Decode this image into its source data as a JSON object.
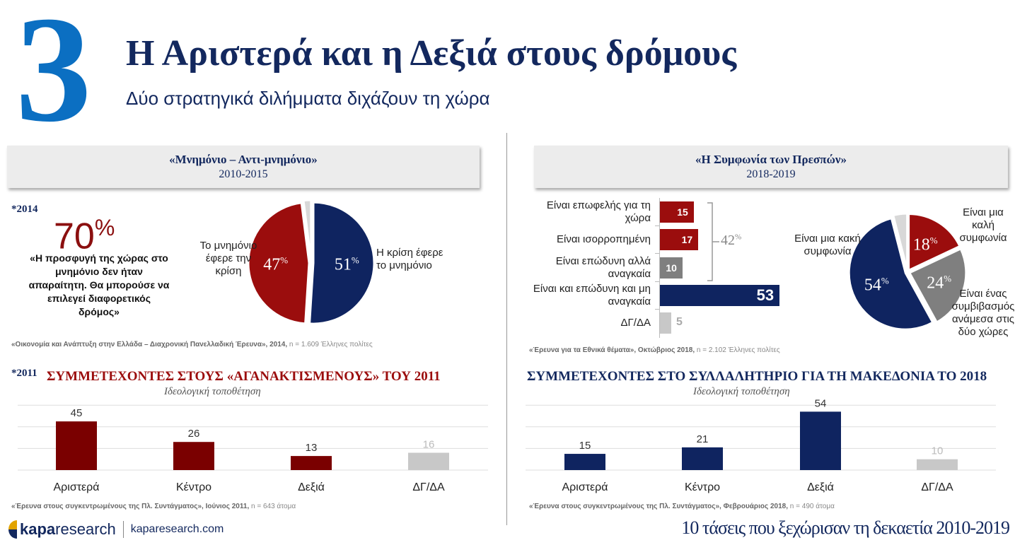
{
  "header": {
    "number": "3",
    "title": "Η Αριστερά και η Δεξιά στους δρόμους",
    "subtitle": "Δύο στρατηγικά διλήμματα διχάζουν τη χώρα"
  },
  "left_panel": {
    "heading": "«Μνημόνιο – Αντι-μνημόνιο»",
    "years": "2010-2015",
    "note_year": "*2014",
    "big_value": "70",
    "big_unit": "%",
    "quote": "«Η προσφυγή της χώρας στο μνημόνιο δεν ήταν απαραίτητη. Θα μπορούσε να επιλεγεί διαφορετικός δρόμος»",
    "source_text": "«Οικονομία και Ανάπτυξη στην Ελλάδα – Διαχρονική Πανελλαδική Έρευνα», 2014,",
    "source_n": " n = 1.609 Έλληνες πολίτες"
  },
  "right_panel": {
    "heading": "«Η Συμφωνία των Πρεσπών»",
    "years": "2018-2019",
    "bracket_total": "42",
    "bracket_unit": "%",
    "source_text": "«Έρευνα για τα Εθνικά θέματα», Οκτώβριος 2018,",
    "source_n": " n = 2.102 Έλληνες πολίτες"
  },
  "chart_data": [
    {
      "type": "pie",
      "name": "memorandum",
      "slices": [
        {
          "label": "Η κρίση έφερε το μνημόνιο",
          "value": 51,
          "display": "51",
          "color": "#0f2460"
        },
        {
          "label": "Το μνημόνιο έφερε την κρίση",
          "value": 47,
          "display": "47",
          "color": "#9b0d0d"
        },
        {
          "label": "",
          "value": 2,
          "color": "#d8d8d8"
        }
      ]
    },
    {
      "type": "bar",
      "name": "prespa-bars",
      "orientation": "horizontal",
      "categories": [
        "Είναι επωφελής για τη χώρα",
        "Είναι ισορροπημένη",
        "Είναι επώδυνη αλλά αναγκαία",
        "Είναι και επώδυνη και μη αναγκαία",
        "ΔΓ/ΔΑ"
      ],
      "values": [
        15,
        17,
        10,
        53,
        5
      ],
      "colors": [
        "#9b0d0d",
        "#9b0d0d",
        "#7f7f7f",
        "#0f2460",
        "#c8c8c8"
      ]
    },
    {
      "type": "pie",
      "name": "prespa-pie",
      "slices": [
        {
          "label": "Είναι μια καλή συμφωνία",
          "value": 18,
          "display": "18",
          "color": "#9b0d0d"
        },
        {
          "label": "Είναι ένας συμβιβασμός ανάμεσα στις δύο χώρες",
          "value": 24,
          "display": "24",
          "color": "#7f7f7f"
        },
        {
          "label": "Είναι μια κακή συμφωνία",
          "value": 54,
          "display": "54",
          "color": "#0f2460"
        },
        {
          "label": "",
          "value": 4,
          "color": "#d8d8d8"
        }
      ]
    },
    {
      "type": "bar",
      "name": "indignados-2011",
      "note": "*2011",
      "title": "ΣΥΜΜΕΤΕΧΟΝΤΕΣ ΣΤΟΥΣ «ΑΓΑΝΑΚΤΙΣΜΕΝΟΥΣ» ΤΟΥ 2011",
      "subtitle": "Ιδεολογική τοποθέτηση",
      "categories": [
        "Αριστερά",
        "Κέντρο",
        "Δεξιά",
        "ΔΓ/ΔΑ"
      ],
      "values": [
        45,
        26,
        13,
        16
      ],
      "colors": [
        "#7a0000",
        "#7a0000",
        "#7a0000",
        "#c8c8c8"
      ],
      "ylim": [
        0,
        60
      ],
      "source_text": "«Έρευνα στους συγκεντρωμένους της Πλ. Συντάγματος», Ιούνιος 2011,",
      "source_n": " n = 643 άτομα"
    },
    {
      "type": "bar",
      "name": "macedonia-2018",
      "title": "ΣΥΜΜΕΤΕΧΟΝΤΕΣ ΣΤΟ ΣΥΛΛΑΛΗΤΗΡΙΟ ΓΙΑ ΤΗ ΜΑΚΕΔΟΝΙΑ ΤΟ 2018",
      "subtitle": "Ιδεολογική τοποθέτηση",
      "categories": [
        "Αριστερά",
        "Κέντρο",
        "Δεξιά",
        "ΔΓ/ΔΑ"
      ],
      "values": [
        15,
        21,
        54,
        10
      ],
      "colors": [
        "#0f2460",
        "#0f2460",
        "#0f2460",
        "#c8c8c8"
      ],
      "ylim": [
        0,
        60
      ],
      "source_text": "«Έρευνα στους συγκεντρωμένους της Πλ. Συντάγματος», Φεβρουάριος 2018,",
      "source_n": " n = 490 άτομα"
    }
  ],
  "footer": {
    "logo_bold": "kapa",
    "logo_light": "research",
    "website": "kaparesearch.com",
    "tagline": "10 τάσεις που ξεχώρισαν τη δεκαετία 2010-2019"
  }
}
